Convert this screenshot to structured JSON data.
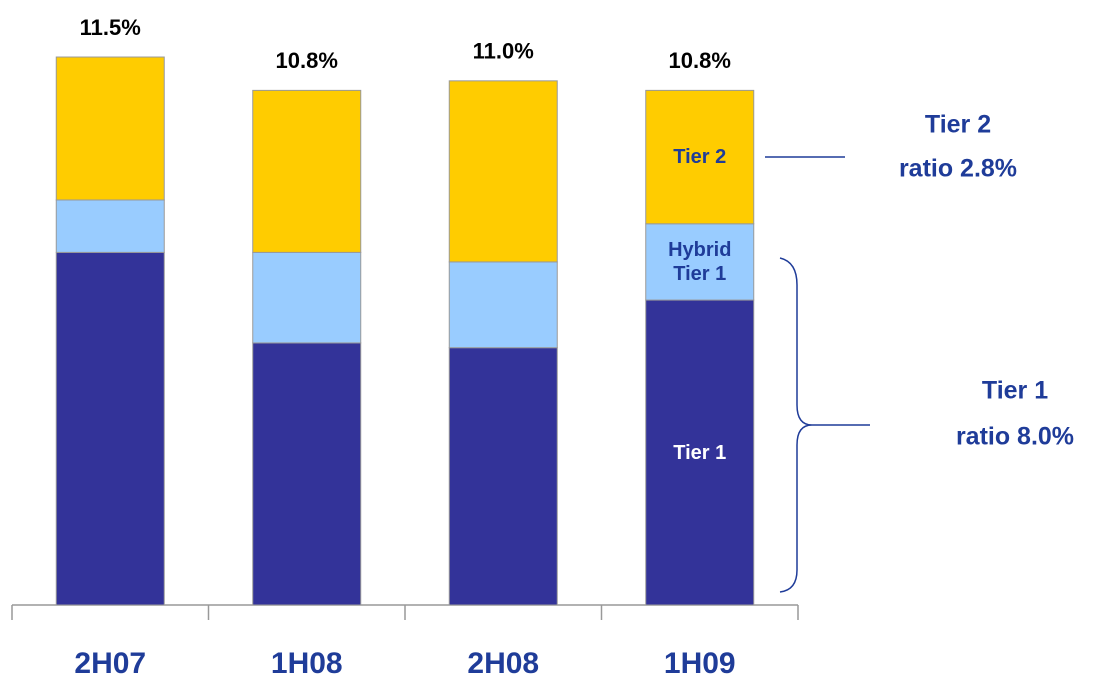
{
  "chart_data": {
    "type": "stacked-bar",
    "categories": [
      "2H07",
      "1H08",
      "2H08",
      "1H09"
    ],
    "series": [
      {
        "name": "Tier 1",
        "color": "#333399",
        "label_color": "#ffffff",
        "values": [
          7.4,
          5.5,
          5.4,
          6.4
        ]
      },
      {
        "name": "Hybrid Tier 1",
        "color": "#99ccff",
        "label_color": "#1f3c99",
        "values": [
          1.1,
          1.9,
          1.8,
          1.6
        ]
      },
      {
        "name": "Tier 2",
        "color": "#ffcc00",
        "label_color": "#1f3c99",
        "values": [
          3.0,
          3.4,
          3.8,
          2.8
        ]
      }
    ],
    "totals": [
      11.5,
      10.8,
      11.0,
      10.8
    ],
    "total_labels": [
      "11.5%",
      "10.8%",
      "11.0%",
      "10.8%"
    ],
    "annotations": [
      {
        "lines": [
          "Tier 2",
          "ratio 2.8%"
        ]
      },
      {
        "lines": [
          "Tier 1",
          "ratio 8.0%"
        ]
      }
    ],
    "ylim": [
      0,
      12
    ]
  }
}
